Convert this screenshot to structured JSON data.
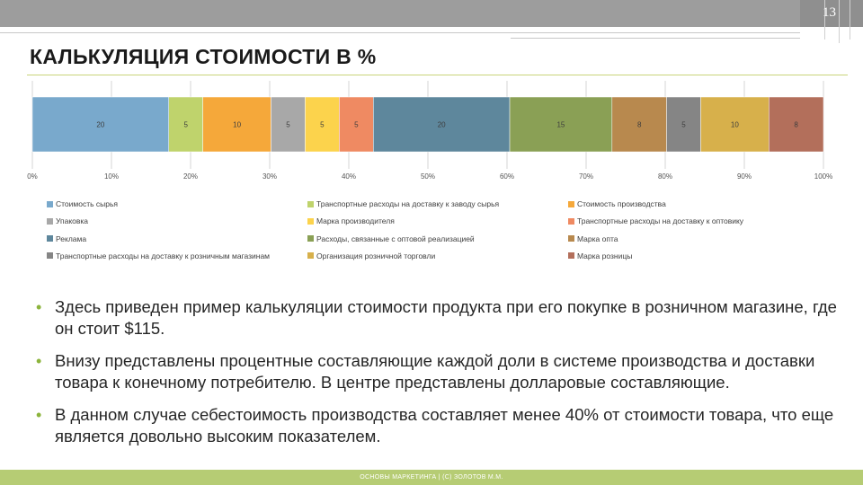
{
  "slide": {
    "page_number": "13",
    "title": "КАЛЬКУЛЯЦИЯ СТОИМОСТИ В %",
    "bullets": [
      "Здесь приведен пример калькуляции стоимости продукта при его покупке в розничном магазине, где он стоит $115.",
      "Внизу представлены процентные составляющие каждой доли в системе производства и доставки товара к конечному потребителю. В центре представлены долларовые составляющие.",
      "В данном случае себестоимость производства составляет менее 40% от стоимости товара, что еще является довольно высоким показателем."
    ],
    "footer": "ОСНОВЫ МАРКЕТИНГА | (С) ЗОЛОТОВ М.М."
  },
  "chart_data": {
    "type": "bar",
    "orientation": "horizontal",
    "stacking": "percent",
    "categories": [
      ""
    ],
    "series": [
      {
        "name": "Стоимость сырья",
        "values": [
          20
        ],
        "color": "#79a9cc"
      },
      {
        "name": "Транспортные расходы на доставку к заводу сырья",
        "values": [
          5
        ],
        "color": "#bfd36c"
      },
      {
        "name": "Стоимость производства",
        "values": [
          10
        ],
        "color": "#f5a83a"
      },
      {
        "name": "Упаковка",
        "values": [
          5
        ],
        "color": "#a8a8a8"
      },
      {
        "name": "Марка производителя",
        "values": [
          5
        ],
        "color": "#fcd34c"
      },
      {
        "name": "Транспортные расходы на доставку к оптовику",
        "values": [
          5
        ],
        "color": "#ef8a62"
      },
      {
        "name": "Реклама",
        "values": [
          20
        ],
        "color": "#5e879c"
      },
      {
        "name": "Расходы, связанные с оптовой реализацией",
        "values": [
          15
        ],
        "color": "#8aa055"
      },
      {
        "name": "Марка опта",
        "values": [
          8
        ],
        "color": "#b8894e"
      },
      {
        "name": "Транспортные расходы на доставку к розничным магазинам",
        "values": [
          5
        ],
        "color": "#858585"
      },
      {
        "name": "Организация розничной торговли",
        "values": [
          10
        ],
        "color": "#d7b04b"
      },
      {
        "name": "Марка розницы",
        "values": [
          8
        ],
        "color": "#b36f5b"
      }
    ],
    "data_labels": [
      "20",
      "5",
      "10",
      "5",
      "5",
      "5",
      "20",
      "15",
      "8",
      "5",
      "10",
      "8"
    ],
    "xlim": [
      0,
      100
    ],
    "x_ticks": [
      "0%",
      "10%",
      "20%",
      "30%",
      "40%",
      "50%",
      "60%",
      "70%",
      "80%",
      "90%",
      "100%"
    ],
    "grid": true,
    "legend_position": "bottom",
    "legend_columns": 3
  }
}
